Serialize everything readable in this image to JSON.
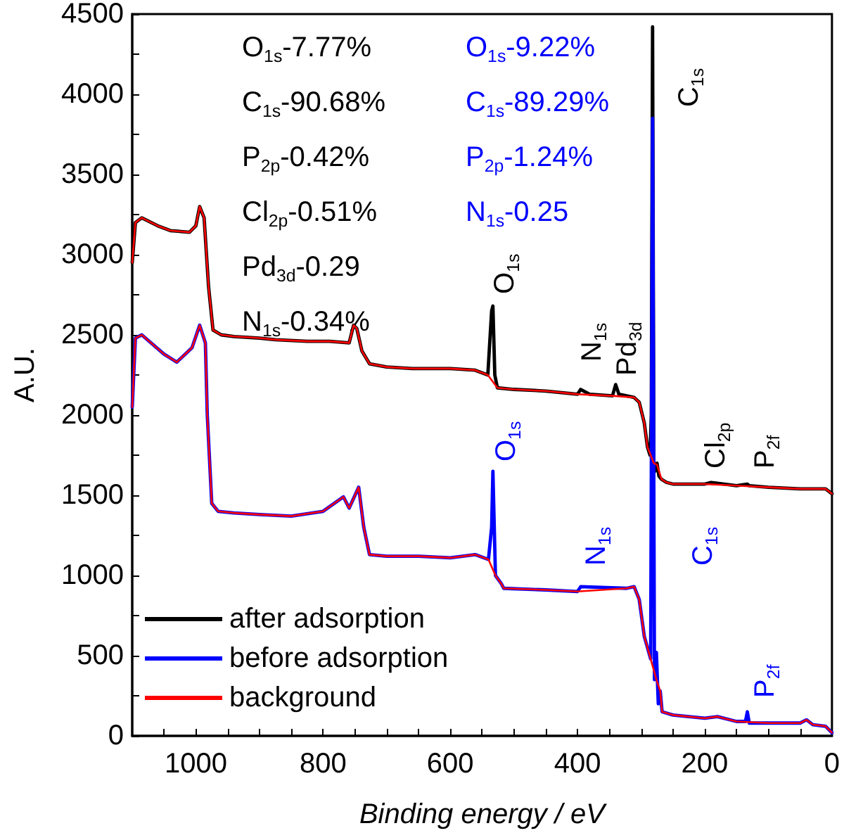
{
  "chart_data": {
    "type": "line",
    "xlabel": "Binding energy / eV",
    "ylabel": "A.U.",
    "xlim": [
      1100,
      0
    ],
    "ylim": [
      0,
      4500
    ],
    "xticks": [
      {
        "value": 1050,
        "label": null
      },
      1000,
      {
        "value": 950,
        "label": null
      },
      {
        "value": 900,
        "label": null
      },
      {
        "value": 850,
        "label": null
      },
      800,
      {
        "value": 750,
        "label": null
      },
      {
        "value": 700,
        "label": null
      },
      {
        "value": 650,
        "label": null
      },
      600,
      {
        "value": 550,
        "label": null
      },
      {
        "value": 500,
        "label": null
      },
      {
        "value": 450,
        "label": null
      },
      400,
      {
        "value": 350,
        "label": null
      },
      {
        "value": 300,
        "label": null
      },
      {
        "value": 250,
        "label": null
      },
      200,
      {
        "value": 150,
        "label": null
      },
      {
        "value": 100,
        "label": null
      },
      {
        "value": 50,
        "label": null
      },
      0
    ],
    "yticks": [
      0,
      {
        "value": 250,
        "label": null
      },
      500,
      {
        "value": 750,
        "label": null
      },
      1000,
      {
        "value": 1250,
        "label": null
      },
      1500,
      {
        "value": 1750,
        "label": null
      },
      2000,
      {
        "value": 2250,
        "label": null
      },
      2500,
      {
        "value": 2750,
        "label": null
      },
      3000,
      {
        "value": 3250,
        "label": null
      },
      3500,
      {
        "value": 3750,
        "label": null
      },
      4000,
      {
        "value": 4250,
        "label": null
      },
      4500
    ],
    "grid": false,
    "legend": "bottom left",
    "line_style": "solid",
    "series": [
      {
        "name": "after adsorption",
        "color": "#000000",
        "x": [
          1100,
          1095,
          1085,
          1060,
          1040,
          1010,
          1000,
          994,
          987,
          980,
          973,
          960,
          940,
          900,
          875,
          825,
          790,
          759,
          752,
          747,
          739,
          727,
          700,
          660,
          600,
          561,
          541,
          535,
          533,
          530,
          526,
          500,
          450,
          400,
          395,
          381,
          345,
          340,
          335,
          311,
          303,
          295,
          290,
          286,
          284,
          282,
          280,
          278,
          275,
          272,
          268,
          260,
          250,
          200,
          190,
          150,
          133,
          130,
          100,
          50,
          10,
          0
        ],
        "values": [
          2950,
          3200,
          3230,
          3180,
          3150,
          3140,
          3180,
          3300,
          3230,
          2800,
          2530,
          2500,
          2490,
          2480,
          2470,
          2460,
          2460,
          2450,
          2560,
          2540,
          2400,
          2320,
          2300,
          2290,
          2290,
          2280,
          2250,
          2650,
          2680,
          2250,
          2170,
          2160,
          2150,
          2130,
          2160,
          2130,
          2120,
          2190,
          2130,
          2110,
          2080,
          1950,
          1800,
          1750,
          2000,
          4420,
          1700,
          1650,
          1700,
          1620,
          1600,
          1580,
          1570,
          1570,
          1580,
          1560,
          1570,
          1560,
          1550,
          1540,
          1540,
          1510
        ]
      },
      {
        "name": "before adsorption",
        "color": "#0000ff",
        "x": [
          1100,
          1095,
          1085,
          1050,
          1030,
          1006,
          994,
          985,
          982,
          975,
          965,
          940,
          900,
          850,
          800,
          768,
          759,
          744,
          736,
          727,
          700,
          650,
          600,
          561,
          540,
          535,
          533,
          529,
          520,
          516,
          450,
          400,
          395,
          323,
          311,
          303,
          295,
          290,
          285,
          282,
          279,
          276,
          273,
          270,
          267,
          250,
          200,
          180,
          150,
          136,
          133,
          130,
          100,
          50,
          40,
          30,
          10,
          0
        ],
        "values": [
          2050,
          2480,
          2500,
          2380,
          2330,
          2420,
          2560,
          2450,
          2000,
          1450,
          1400,
          1390,
          1380,
          1370,
          1400,
          1490,
          1420,
          1550,
          1300,
          1130,
          1120,
          1120,
          1110,
          1130,
          1100,
          1300,
          1650,
          1000,
          950,
          920,
          910,
          900,
          930,
          920,
          930,
          850,
          620,
          550,
          480,
          3850,
          350,
          520,
          200,
          280,
          150,
          130,
          110,
          120,
          90,
          90,
          150,
          80,
          80,
          80,
          100,
          70,
          60,
          20
        ]
      },
      {
        "name": "background",
        "color": "#ff0000",
        "x": [
          1100,
          1095,
          1085,
          1060,
          1040,
          1010,
          1000,
          994,
          987,
          980,
          973,
          960,
          940,
          900,
          875,
          825,
          790,
          759,
          752,
          747,
          739,
          727,
          700,
          660,
          600,
          561,
          541,
          526,
          500,
          450,
          400,
          345,
          311,
          303,
          295,
          290,
          280,
          275,
          268,
          260,
          250,
          200,
          150,
          100,
          50,
          10,
          0
        ],
        "values": [
          2950,
          3200,
          3230,
          3180,
          3150,
          3140,
          3180,
          3300,
          3230,
          2800,
          2530,
          2500,
          2490,
          2480,
          2470,
          2460,
          2460,
          2450,
          2560,
          2540,
          2400,
          2320,
          2300,
          2290,
          2290,
          2280,
          2250,
          2170,
          2160,
          2150,
          2130,
          2120,
          2110,
          2080,
          1950,
          1800,
          1700,
          1690,
          1600,
          1580,
          1570,
          1570,
          1560,
          1550,
          1540,
          1540,
          1510
        ]
      },
      {
        "color": "#ff0000",
        "x": [
          1100,
          1095,
          1085,
          1050,
          1030,
          1006,
          994,
          985,
          982,
          975,
          965,
          940,
          900,
          850,
          800,
          768,
          759,
          744,
          736,
          727,
          700,
          650,
          600,
          561,
          540,
          529,
          520,
          516,
          450,
          400,
          323,
          311,
          303,
          295,
          290,
          285,
          276,
          270,
          267,
          250,
          200,
          180,
          150,
          100,
          50,
          40,
          30,
          10,
          0
        ],
        "values": [
          2050,
          2480,
          2500,
          2380,
          2330,
          2420,
          2560,
          2450,
          2000,
          1450,
          1400,
          1390,
          1380,
          1370,
          1400,
          1490,
          1420,
          1550,
          1300,
          1130,
          1120,
          1120,
          1110,
          1130,
          1100,
          1000,
          950,
          920,
          910,
          900,
          920,
          930,
          850,
          620,
          550,
          480,
          350,
          280,
          150,
          130,
          110,
          120,
          90,
          80,
          80,
          100,
          70,
          60,
          20
        ]
      }
    ],
    "annotations": [
      "O$_{1s}$-7.77%",
      "C$_{1s}$-90.68%",
      "P$_{2p}$-0.42%",
      "Cl$_{2p}$-0.51%",
      "Pd$_{3d}$-0.29",
      "N$_{1s}$-0.34%",
      "O$_{1s}$-9.22%",
      "C$_{1s}$-89.29%",
      "P$_{2p}$-1.24%",
      "N$_{1s}$-0.25",
      "O$_{1s}$",
      "N$_{1s}$",
      "Pd$_{3d}$",
      "C$_{1s}$",
      "Cl$_{2p}$",
      "P$_{2f}$",
      "O$_{1s}$",
      "N$_{1s}$",
      "C$_{1s}$",
      "P$_{2f}$"
    ]
  }
}
